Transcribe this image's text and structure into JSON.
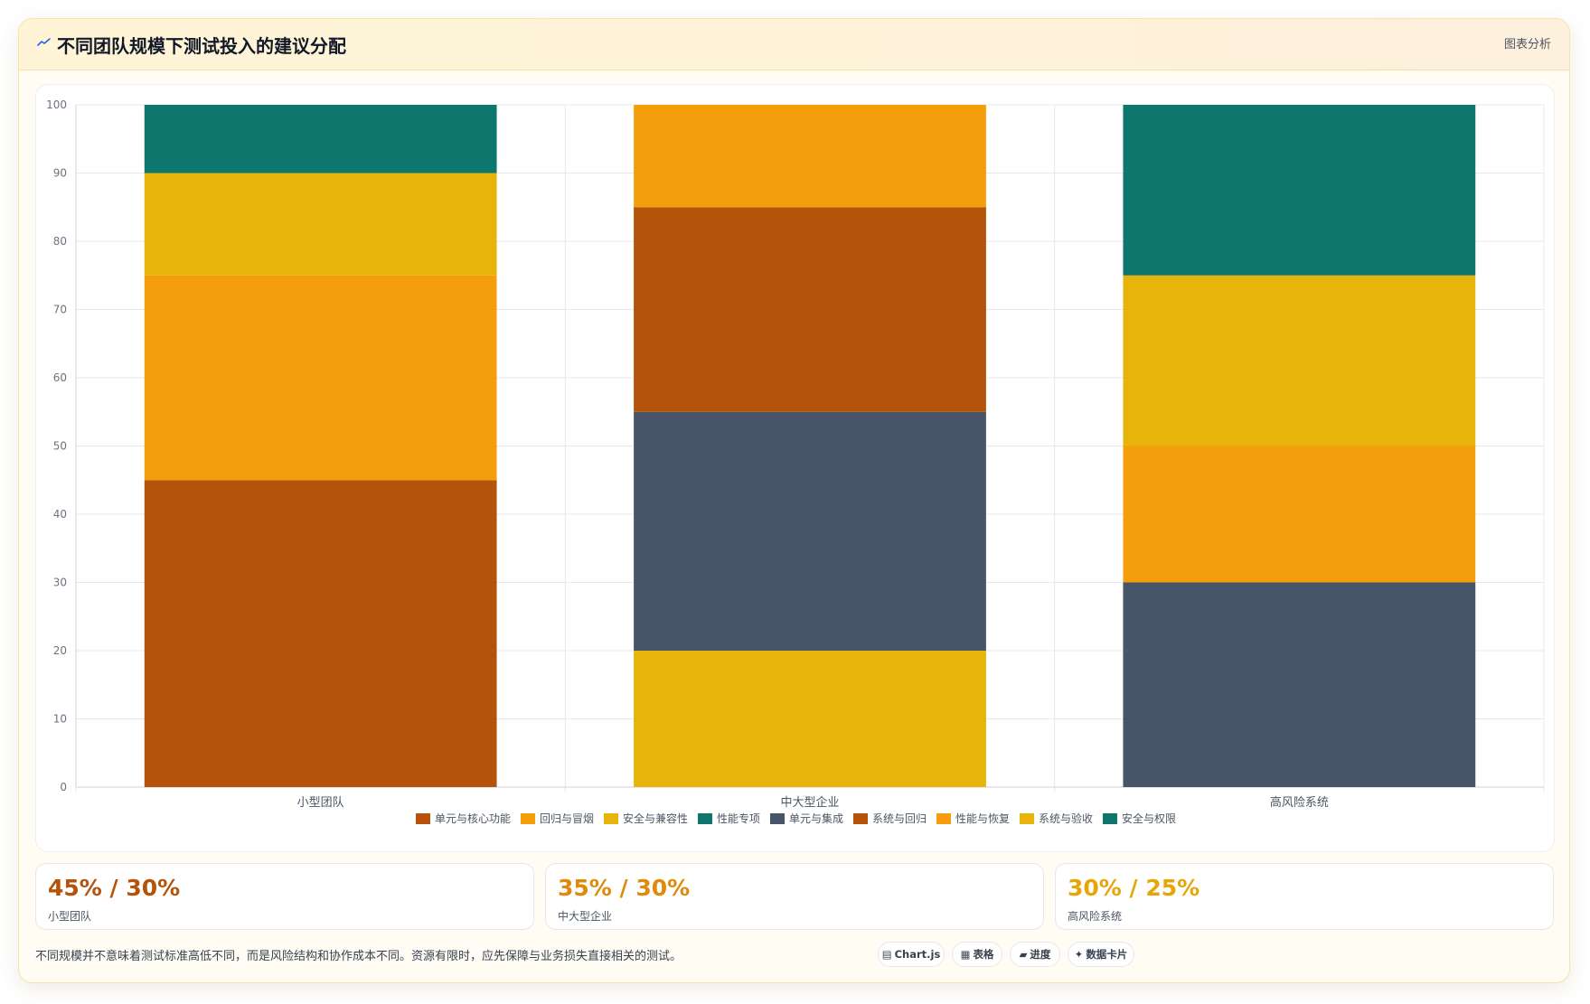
{
  "header": {
    "title": "不同团队规模下测试投入的建议分配",
    "tag": "图表分析"
  },
  "chart_data": {
    "type": "bar",
    "stacked": true,
    "categories": [
      "小型团队",
      "中大型企业",
      "高风险系统"
    ],
    "ylim": [
      0,
      100
    ],
    "yticks": [
      0,
      10,
      20,
      30,
      40,
      50,
      60,
      70,
      80,
      90,
      100
    ],
    "grid": true,
    "legend_position": "bottom",
    "series": [
      {
        "name": "单元与核心功能",
        "color": "#b45309",
        "values": [
          45,
          0,
          0
        ]
      },
      {
        "name": "回归与冒烟",
        "color": "#f59e0b",
        "values": [
          30,
          0,
          0
        ]
      },
      {
        "name": "安全与兼容性",
        "color": "#e6b40a",
        "values": [
          15,
          20,
          0
        ]
      },
      {
        "name": "性能专项",
        "color": "#0f766e",
        "values": [
          10,
          0,
          0
        ]
      },
      {
        "name": "单元与集成",
        "color": "#475569",
        "values": [
          0,
          35,
          30
        ]
      },
      {
        "name": "系统与回归",
        "color": "#b45309",
        "values": [
          0,
          30,
          0
        ]
      },
      {
        "name": "性能与恢复",
        "color": "#f59e0b",
        "values": [
          0,
          15,
          20
        ]
      },
      {
        "name": "系统与验收",
        "color": "#e6b40a",
        "values": [
          0,
          0,
          25
        ]
      },
      {
        "name": "安全与权限",
        "color": "#0f766e",
        "values": [
          0,
          0,
          25
        ]
      }
    ]
  },
  "stats": [
    {
      "value": "45% / 30%",
      "label": "小型团队",
      "color": "#b45309"
    },
    {
      "value": "35% / 30%",
      "label": "中大型企业",
      "color": "#e08a0b"
    },
    {
      "value": "30% / 25%",
      "label": "高风险系统",
      "color": "#e6a60a"
    }
  ],
  "footnote": "不同规模并不意味着测试标准高低不同，而是风险结构和协作成本不同。资源有限时，应先保障与业务损失直接相关的测试。",
  "pills": [
    {
      "glyph": "▤",
      "label": "Chart.js"
    },
    {
      "glyph": "▦",
      "label": "表格"
    },
    {
      "glyph": "▰",
      "label": "进度"
    },
    {
      "glyph": "✦",
      "label": "数据卡片"
    }
  ]
}
